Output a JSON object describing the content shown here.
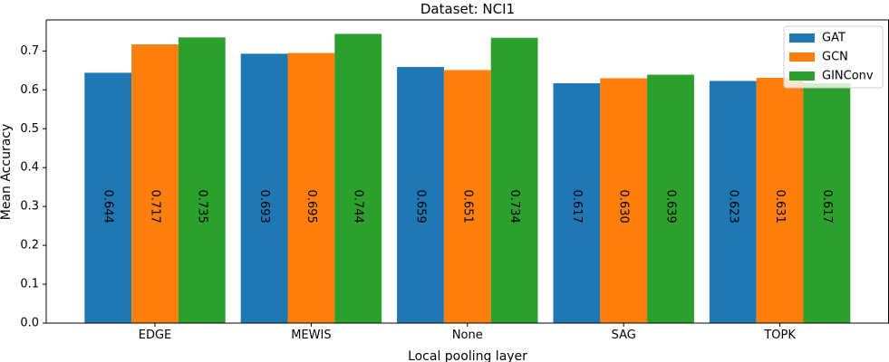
{
  "chart_data": {
    "type": "bar",
    "title": "Dataset: NCI1",
    "xlabel": "Local pooling layer",
    "ylabel": "Mean Accuracy",
    "categories": [
      "EDGE",
      "MEWIS",
      "None",
      "SAG",
      "TOPK"
    ],
    "series": [
      {
        "name": "GAT",
        "color": "#1f77b4",
        "values": [
          0.644,
          0.693,
          0.659,
          0.617,
          0.623
        ],
        "labels": [
          "0.644",
          "0.693",
          "0.659",
          "0.617",
          "0.623"
        ]
      },
      {
        "name": "GCN",
        "color": "#ff7f0e",
        "values": [
          0.717,
          0.695,
          0.651,
          0.63,
          0.631
        ],
        "labels": [
          "0.717",
          "0.695",
          "0.651",
          "0.630",
          "0.631"
        ]
      },
      {
        "name": "GINConv",
        "color": "#2ca02c",
        "values": [
          0.735,
          0.744,
          0.734,
          0.639,
          0.617
        ],
        "labels": [
          "0.735",
          "0.744",
          "0.734",
          "0.639",
          "0.617"
        ]
      }
    ],
    "ylim": [
      0,
      0.78
    ],
    "yticks": [
      0.0,
      0.1,
      0.2,
      0.3,
      0.4,
      0.5,
      0.6,
      0.7
    ],
    "ytick_labels": [
      "0.0",
      "0.1",
      "0.2",
      "0.3",
      "0.4",
      "0.5",
      "0.6",
      "0.7"
    ],
    "legend_position": "top-right",
    "grid": false
  }
}
